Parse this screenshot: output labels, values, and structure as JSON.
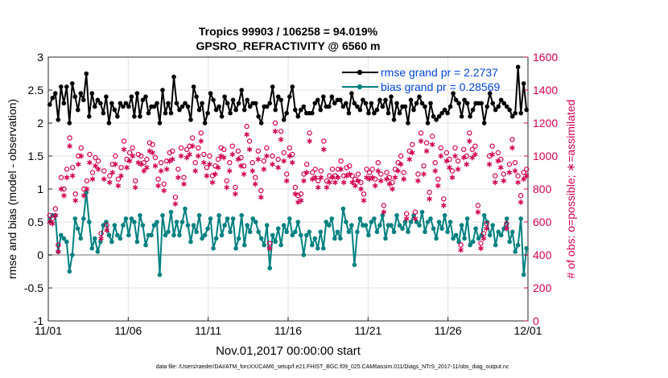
{
  "chart_data": {
    "type": "line",
    "title": "Tropics 99903 / 106258 = 94.019%",
    "subtitle": "GPSRO_REFRACTIVITY @ 6560 m",
    "xlabel": "Nov.01,2017 00:00:00 start",
    "ylabel_left": "rmse and bias (model - observation)",
    "ylabel_right": "# of obs: o=possible; ∗=assimilated",
    "footer": "data file: /Users/raeder/DAI/ATM_forcXX/CAM6_setup/f.e21.FHIST_BGC.f09_025.CAM6assim.011/Diags_NTrS_2017-11/obs_diag_output.nc",
    "xlim": [
      0,
      30
    ],
    "ylim_left": [
      -1,
      3
    ],
    "ylim_right": [
      0,
      1600
    ],
    "x_ticks": [
      0,
      5,
      10,
      15,
      20,
      25,
      30
    ],
    "x_tick_labels": [
      "11/01",
      "11/06",
      "11/11",
      "11/16",
      "11/21",
      "11/26",
      "12/01"
    ],
    "y_left_ticks": [
      -1,
      -0.5,
      0,
      0.5,
      1,
      1.5,
      2,
      2.5,
      3
    ],
    "y_left_tick_labels": [
      "-1",
      "-0.5",
      "0",
      "0.5",
      "1",
      "1.5",
      "2",
      "2.5",
      "3"
    ],
    "y_right_ticks": [
      0,
      200,
      400,
      600,
      800,
      1000,
      1200,
      1400,
      1600
    ],
    "y_right_tick_labels": [
      "0",
      "200",
      "400",
      "600",
      "800",
      "1000",
      "1200",
      "1400",
      "1600"
    ],
    "legend": [
      {
        "label": "rmse grand pr = 2.2737",
        "color": "#000000"
      },
      {
        "label": "bias grand pr = 0.28569",
        "color": "#008080"
      }
    ],
    "series": [
      {
        "name": "rmse",
        "axis": "left",
        "color": "#000000",
        "values": [
          2.28,
          2.38,
          2.45,
          2.05,
          2.55,
          2.3,
          2.55,
          2.0,
          2.6,
          2.4,
          2.2,
          2.45,
          2.35,
          2.75,
          2.1,
          2.45,
          2.25,
          2.35,
          2.3,
          2.15,
          2.4,
          2.0,
          2.3,
          2.2,
          2.1,
          2.3,
          2.25,
          2.3,
          2.25,
          2.4,
          2.1,
          2.45,
          2.1,
          2.35,
          2.4,
          2.15,
          2.25,
          2.25,
          2.3,
          2.0,
          2.5,
          2.15,
          2.3,
          2.15,
          2.7,
          2.3,
          2.2,
          2.25,
          2.3,
          2.25,
          2.05,
          2.55,
          2.4,
          2.2,
          2.3,
          2.0,
          2.15,
          2.45,
          2.35,
          2.2,
          2.25,
          2.1,
          2.4,
          2.3,
          2.15,
          2.35,
          2.2,
          2.3,
          2.5,
          2.2,
          2.35,
          2.25,
          2.3,
          2.3,
          2.1,
          2.0,
          2.25,
          2.25,
          2.3,
          2.55,
          2.2,
          2.4,
          2.35,
          2.05,
          2.15,
          2.4,
          2.55,
          2.2,
          2.1,
          2.2,
          2.25,
          2.15,
          2.15,
          2.15,
          2.3,
          2.35,
          2.2,
          2.4,
          2.25,
          2.25,
          2.4,
          2.3,
          2.35,
          2.35,
          2.25,
          2.3,
          2.15,
          2.45,
          2.3,
          2.25,
          2.2,
          2.35,
          2.3,
          2.15,
          2.3,
          2.15,
          2.2,
          2.35,
          2.25,
          2.35,
          2.15,
          2.4,
          2.05,
          2.3,
          2.15,
          2.25,
          2.25,
          2.0,
          2.35,
          2.2,
          2.3,
          2.4,
          2.3,
          2.25,
          2.0,
          2.3,
          2.1,
          2.05,
          2.1,
          2.15,
          2.2,
          2.15,
          2.25,
          2.45,
          2.35,
          2.3,
          2.1,
          2.35,
          2.3,
          2.1,
          2.2,
          2.3,
          2.3,
          2.3,
          2.0,
          2.25,
          2.45,
          2.3,
          2.2,
          2.25,
          2.35,
          2.3,
          2.25,
          2.2,
          2.1,
          2.15,
          2.85,
          2.15,
          2.6,
          2.2
        ]
      },
      {
        "name": "bias",
        "axis": "left",
        "color": "#008080",
        "values": [
          0.55,
          0.6,
          0.6,
          0.05,
          0.3,
          0.25,
          0.2,
          -0.25,
          0.0,
          0.55,
          0.4,
          0.25,
          0.55,
          0.95,
          0.5,
          0.1,
          0.25,
          0.05,
          0.2,
          0.45,
          0.5,
          0.3,
          0.2,
          0.45,
          0.3,
          0.25,
          0.45,
          0.55,
          0.3,
          0.55,
          0.5,
          0.2,
          0.6,
          0.45,
          0.15,
          0.3,
          0.3,
          0.45,
          0.5,
          -0.3,
          0.6,
          0.3,
          0.35,
          0.65,
          0.3,
          0.5,
          0.3,
          0.5,
          0.7,
          0.45,
          0.2,
          0.45,
          0.35,
          0.6,
          0.25,
          0.3,
          0.4,
          0.55,
          0.1,
          0.25,
          0.6,
          0.3,
          0.45,
          0.55,
          0.35,
          0.55,
          0.1,
          0.25,
          0.6,
          0.15,
          0.45,
          0.35,
          0.55,
          0.5,
          0.35,
          0.25,
          0.15,
          0.45,
          -0.2,
          0.3,
          0.2,
          0.4,
          0.15,
          0.45,
          0.35,
          0.55,
          0.3,
          0.35,
          0.5,
          0.3,
          0.0,
          0.3,
          0.35,
          0.15,
          0.25,
          0.1,
          0.35,
          0.1,
          0.5,
          0.45,
          0.55,
          0.25,
          0.35,
          0.25,
          0.7,
          0.5,
          0.35,
          0.45,
          -0.15,
          0.35,
          0.55,
          0.45,
          0.45,
          0.3,
          0.5,
          0.55,
          0.35,
          0.45,
          0.6,
          0.25,
          0.45,
          0.45,
          0.35,
          0.6,
          0.45,
          0.4,
          0.5,
          0.35,
          0.5,
          0.6,
          0.5,
          0.45,
          0.65,
          0.35,
          0.5,
          0.55,
          0.4,
          0.25,
          0.5,
          0.4,
          0.6,
          0.35,
          0.5,
          0.25,
          0.3,
          0.2,
          0.45,
          0.25,
          0.55,
          0.15,
          0.2,
          0.4,
          0.25,
          0.3,
          0.6,
          0.5,
          0.3,
          0.45,
          0.15,
          0.35,
          0.3,
          0.4,
          0.55,
          0.2,
          0.35,
          0.05,
          0.15,
          0.55,
          -0.3,
          0.1
        ]
      },
      {
        "name": "obs possible",
        "axis": "right",
        "color": "#d10050",
        "values": [
          640,
          620,
          680,
          460,
          870,
          800,
          920,
          1110,
          930,
          770,
          1000,
          1050,
          800,
          850,
          1010,
          900,
          990,
          970,
          530,
          910,
          580,
          880,
          950,
          1000,
          860,
          930,
          1090,
          980,
          1020,
          1050,
          850,
          1010,
          1000,
          960,
          980,
          1080,
          1070,
          990,
          860,
          960,
          830,
          970,
          1020,
          1030,
          750,
          920,
          1050,
          870,
          1040,
          1060,
          1110,
          960,
          1050,
          1140,
          1010,
          930,
          1000,
          880,
          940,
          980,
          1050,
          1040,
          850,
          960,
          1060,
          810,
          1030,
          990,
          940,
          1180,
          1090,
          960,
          870,
          1030,
          790,
          970,
          1050,
          470,
          1000,
          1200,
          980,
          1150,
          1020,
          890,
          1050,
          1010,
          810,
          760,
          770,
          890,
          950,
          1140,
          900,
          920,
          850,
          910,
          1090,
          850,
          880,
          920,
          880,
          920,
          970,
          880,
          930,
          940,
          880,
          860,
          890,
          840,
          770,
          920,
          900,
          920,
          860,
          960,
          890,
          700,
          900,
          870,
          840,
          920,
          960,
          1000,
          900,
          650,
          1030,
          1070,
          660,
          890,
          1140,
          940,
          1080,
          780,
          1120,
          960,
          860,
          1050,
          740,
          1020,
          980,
          910,
          1050,
          970,
          460,
          1040,
          1000,
          1140,
          1040,
          1060,
          700,
          470,
          530,
          590,
          1000,
          1060,
          880,
          1020,
          980,
          890,
          590,
          950,
          1100,
          960,
          880,
          760,
          900,
          920
        ]
      },
      {
        "name": "obs assimilated",
        "axis": "right",
        "color": "#d10050",
        "values": [
          600,
          590,
          640,
          420,
          800,
          760,
          870,
          1060,
          880,
          730,
          950,
          1000,
          760,
          800,
          960,
          860,
          940,
          920,
          500,
          860,
          550,
          840,
          900,
          950,
          820,
          880,
          1040,
          930,
          970,
          1000,
          810,
          960,
          950,
          910,
          930,
          1030,
          1020,
          940,
          820,
          910,
          790,
          920,
          970,
          980,
          710,
          870,
          1000,
          830,
          990,
          1010,
          1060,
          910,
          1000,
          1090,
          960,
          880,
          950,
          840,
          890,
          930,
          1000,
          990,
          810,
          910,
          1010,
          770,
          980,
          940,
          890,
          1130,
          1040,
          910,
          830,
          980,
          750,
          920,
          1000,
          440,
          950,
          1150,
          930,
          1100,
          970,
          850,
          1000,
          960,
          770,
          720,
          730,
          850,
          900,
          1090,
          860,
          870,
          810,
          870,
          1040,
          810,
          840,
          870,
          840,
          870,
          920,
          840,
          880,
          890,
          840,
          820,
          850,
          800,
          730,
          870,
          860,
          870,
          820,
          910,
          850,
          660,
          860,
          830,
          800,
          870,
          910,
          950,
          860,
          620,
          980,
          1020,
          620,
          850,
          1090,
          890,
          1030,
          740,
          1070,
          910,
          820,
          1000,
          700,
          970,
          930,
          870,
          1000,
          920,
          430,
          990,
          950,
          1090,
          990,
          1010,
          660,
          440,
          500,
          560,
          950,
          1010,
          840,
          970,
          930,
          850,
          560,
          900,
          1050,
          910,
          840,
          720,
          860,
          880
        ]
      }
    ]
  }
}
